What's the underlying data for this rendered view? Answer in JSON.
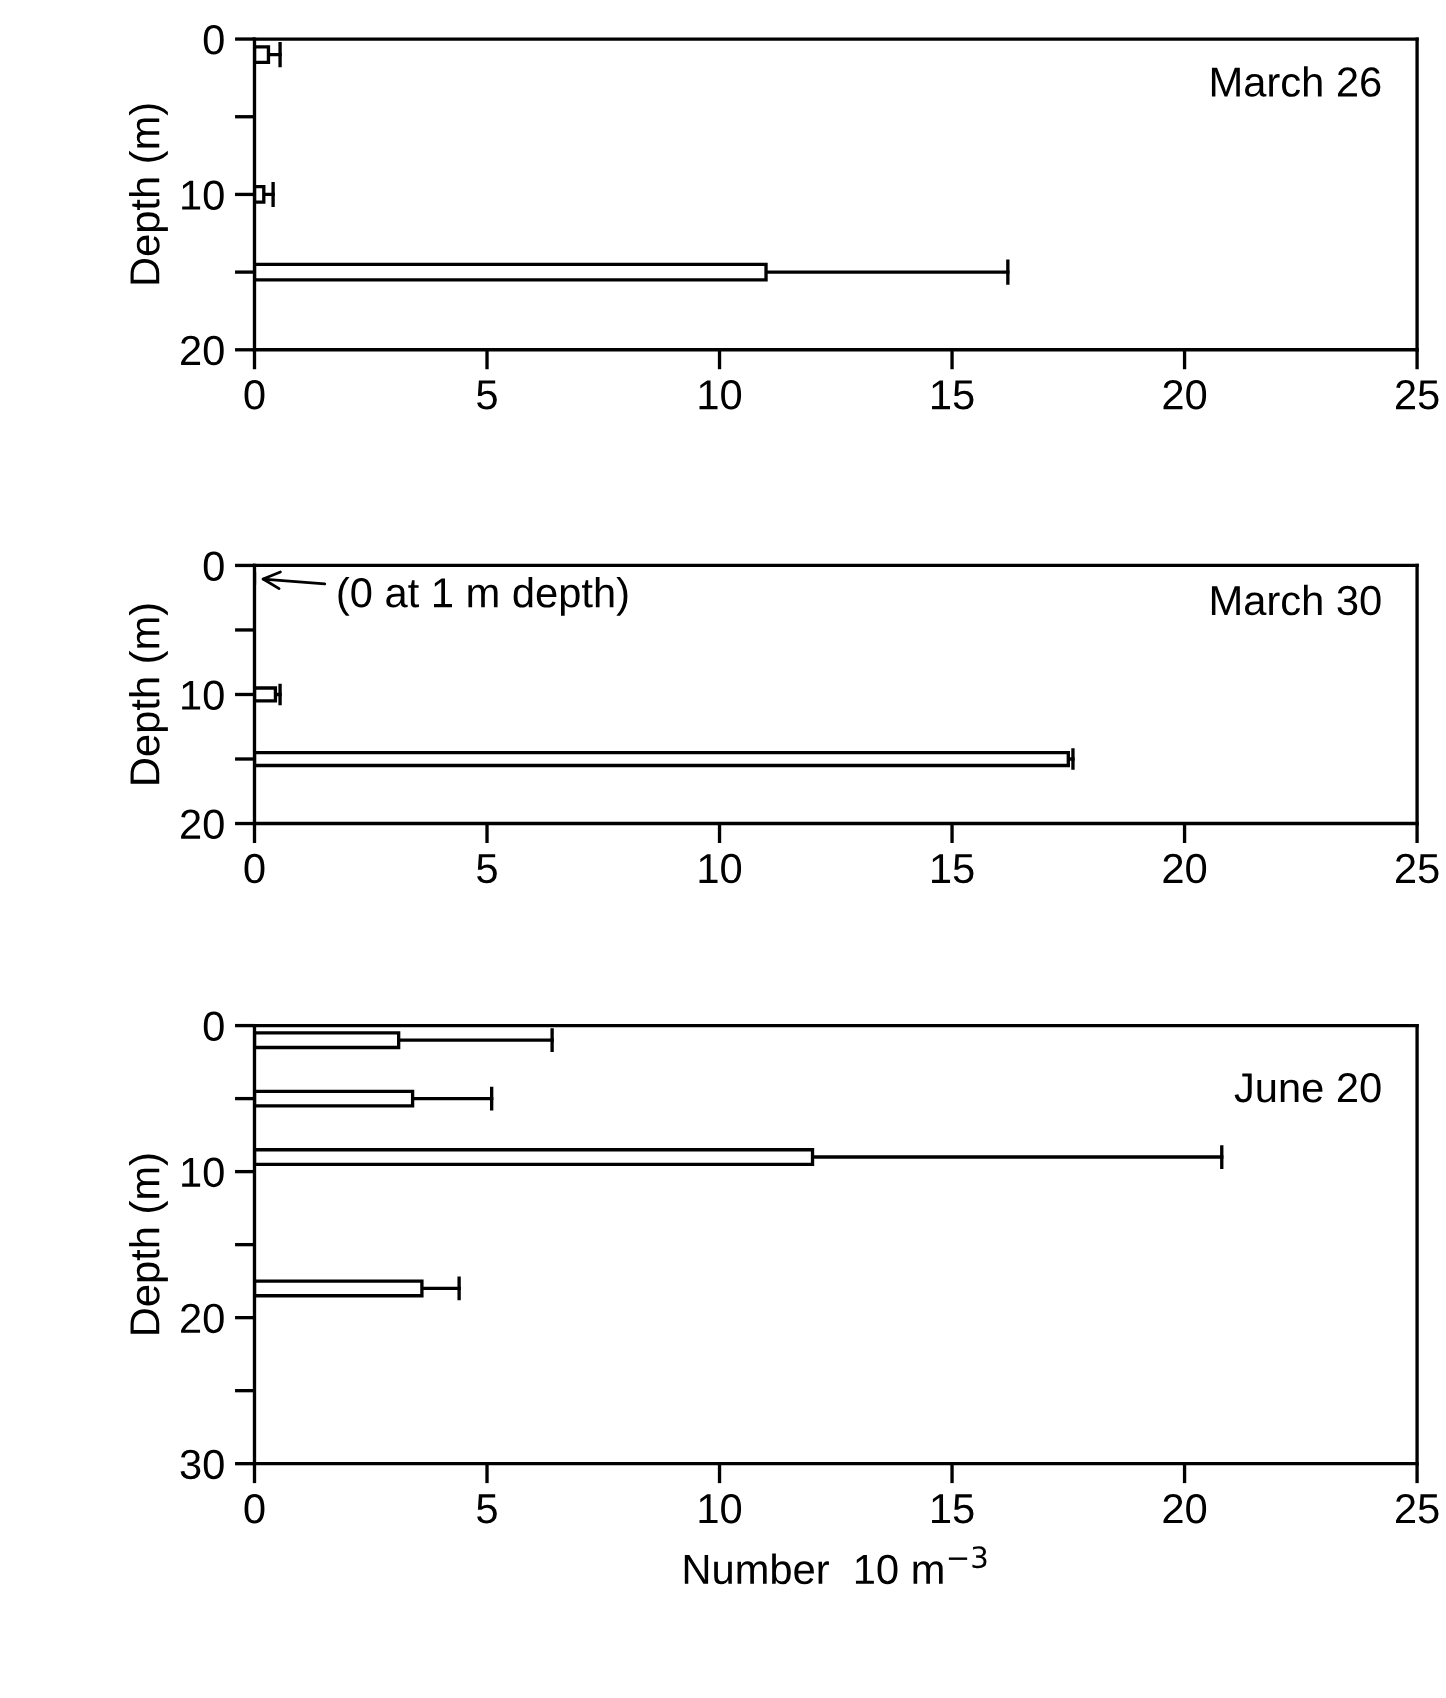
{
  "chart_data": [
    {
      "type": "bar",
      "orientation": "horizontal",
      "title": "March 26",
      "ylabel": "Depth (m)",
      "x": [
        1,
        10,
        15
      ],
      "values": [
        0.3,
        0.2,
        11.0
      ],
      "errors": [
        [
          0.3,
          0.55
        ],
        [
          0.2,
          0.4
        ],
        [
          11.0,
          16.2
        ]
      ],
      "color": "#ffffff",
      "xlim": [
        0,
        25
      ],
      "xticks": [
        0,
        5,
        10,
        15,
        20,
        25
      ],
      "ylim": [
        20,
        0
      ],
      "yticks": [
        0,
        {
          "value": 5,
          "label": null
        },
        10,
        {
          "value": 15,
          "label": null
        },
        20
      ],
      "grid": false
    },
    {
      "type": "bar",
      "orientation": "horizontal",
      "title": "March 30",
      "ylabel": "Depth (m)",
      "x": [
        1,
        10,
        15
      ],
      "values": [
        0,
        0.45,
        17.5
      ],
      "errors": [
        null,
        [
          0.45,
          0.55
        ],
        [
          17.5,
          17.6
        ]
      ],
      "color": "#ffffff",
      "xlim": [
        0,
        25
      ],
      "xticks": [
        0,
        5,
        10,
        15,
        20,
        25
      ],
      "ylim": [
        20,
        0
      ],
      "yticks": [
        0,
        {
          "value": 5,
          "label": null
        },
        10,
        {
          "value": 15,
          "label": null
        },
        20
      ],
      "grid": false,
      "annotations": [
        {
          "text": "(0 at 1 m depth)",
          "x": 0,
          "y": 1
        }
      ]
    },
    {
      "type": "bar",
      "orientation": "horizontal",
      "title": "June 20",
      "ylabel": "Depth (m)",
      "xlabel": "Number  10 m$^{−3}$",
      "x": [
        1,
        5,
        9,
        18
      ],
      "values": [
        3.1,
        3.4,
        12.0,
        3.6
      ],
      "errors": [
        [
          3.1,
          6.4
        ],
        [
          3.4,
          5.1
        ],
        [
          12.0,
          20.8
        ],
        [
          3.6,
          4.4
        ]
      ],
      "color": "#ffffff",
      "xlim": [
        0,
        25
      ],
      "xticks": [
        0,
        5,
        10,
        15,
        20,
        25
      ],
      "ylim": [
        30,
        0
      ],
      "yticks": [
        0,
        {
          "value": 5,
          "label": null
        },
        10,
        {
          "value": 15,
          "label": null
        },
        20,
        {
          "value": 25,
          "label": null
        },
        30
      ],
      "grid": false
    }
  ]
}
